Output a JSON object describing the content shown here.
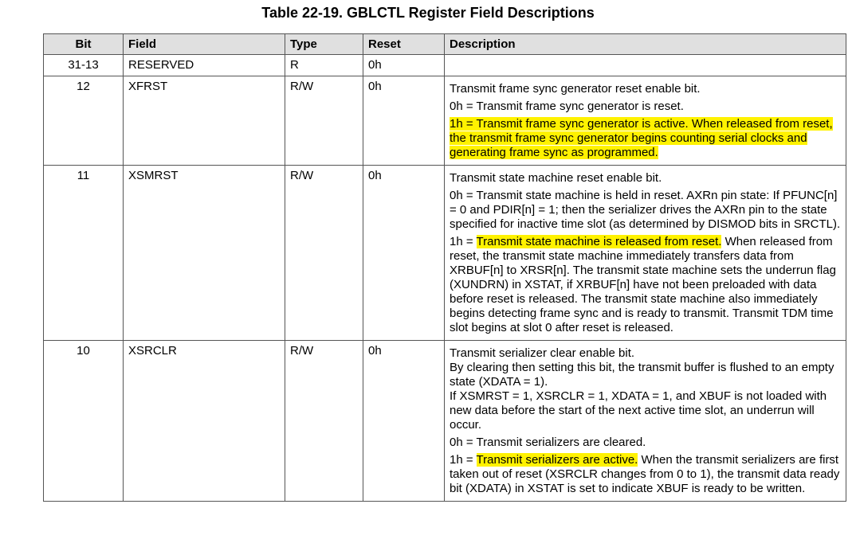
{
  "title": "Table 22-19. GBLCTL Register Field Descriptions",
  "table": {
    "header": [
      "Bit",
      "Field",
      "Type",
      "Reset",
      "Description"
    ],
    "rows": [
      {
        "bit": "31-13",
        "field": "RESERVED",
        "type": "R",
        "reset": "0h",
        "description": []
      },
      {
        "bit": "12",
        "field": "XFRST",
        "type": "R/W",
        "reset": "0h",
        "description": [
          [
            [
              "Transmit frame sync generator reset enable bit."
            ]
          ],
          [
            [
              "0h = Transmit frame sync generator is reset."
            ]
          ],
          [
            [
              {
                "text": "1h = Transmit frame sync generator is active. When released from reset, the transmit frame sync generator begins counting serial clocks and generating frame sync as programmed.",
                "highlight": true
              }
            ]
          ]
        ]
      },
      {
        "bit": "11",
        "field": "XSMRST",
        "type": "R/W",
        "reset": "0h",
        "description": [
          [
            [
              "Transmit state machine reset enable bit."
            ]
          ],
          [
            [
              "0h = Transmit state machine is held in reset. AXRn pin state: If PFUNC[n] = 0 and PDIR[n] = 1; then the serializer drives the AXRn pin to the state specified for inactive time slot (as determined by DISMOD bits in SRCTL)."
            ]
          ],
          [
            [
              "1h = ",
              {
                "text": "Transmit state machine is released from reset.",
                "highlight": true
              },
              " When released from reset, the transmit state machine immediately transfers data from XRBUF[n] to XRSR[n]. The transmit state machine sets the underrun flag (XUNDRN) in XSTAT, if XRBUF[n] have not been preloaded with data before reset is released. The transmit state machine also immediately begins detecting frame sync and is ready to transmit. Transmit TDM time slot begins at slot 0 after reset is released."
            ]
          ]
        ]
      },
      {
        "bit": "10",
        "field": "XSRCLR",
        "type": "R/W",
        "reset": "0h",
        "description": [
          [
            [
              "Transmit serializer clear enable bit."
            ],
            [
              "By clearing then setting this bit, the transmit buffer is flushed to an empty state (XDATA = 1)."
            ],
            [
              "If XSMRST = 1, XSRCLR = 1, XDATA = 1, and XBUF is not loaded with new data before the start of the next active time slot, an underrun will occur."
            ]
          ],
          [
            [
              "0h = Transmit serializers are cleared."
            ]
          ],
          [
            [
              "1h = ",
              {
                "text": "Transmit serializers are active.",
                "highlight": true
              },
              " When the transmit serializers are first taken out of reset (XSRCLR changes from 0 to 1), the transmit data ready bit (XDATA) in XSTAT is set to indicate XBUF is ready to be written."
            ]
          ]
        ]
      }
    ]
  }
}
